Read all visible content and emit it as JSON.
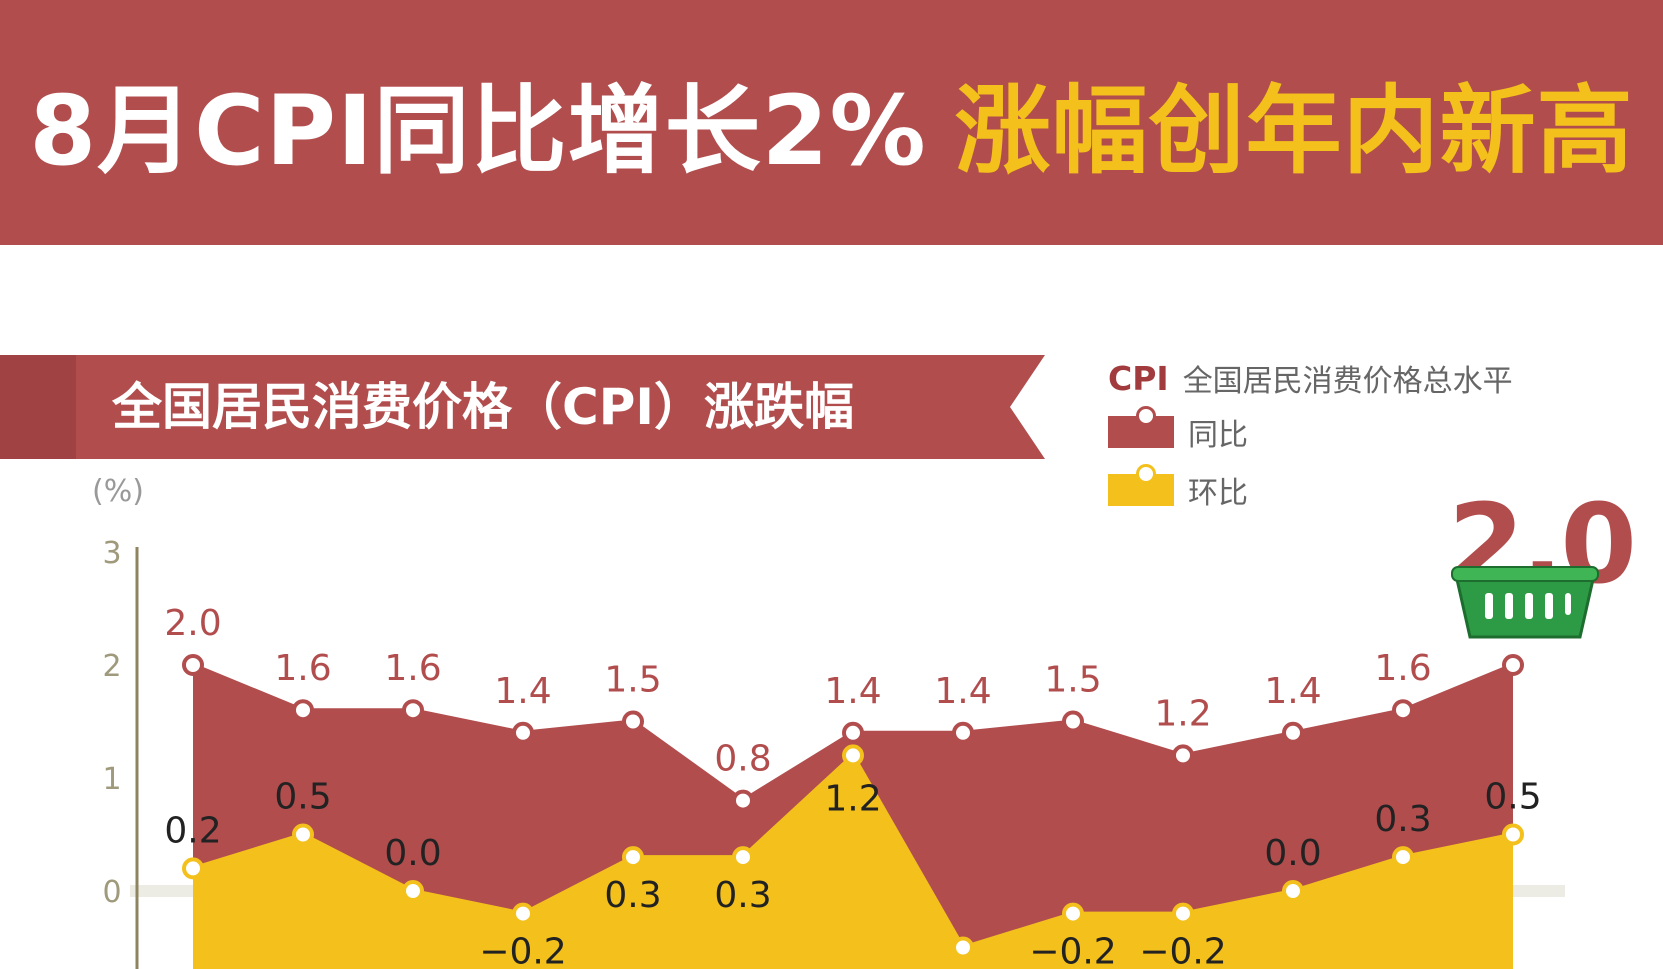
{
  "header": {
    "title_main": "8月CPI同比增长2%",
    "title_highlight": "涨幅创年内新高"
  },
  "banner": {
    "title": "全国居民消费价格（CPI）涨跌幅"
  },
  "legend": {
    "cpi_label": "CPI",
    "cpi_desc": "全国居民消费价格总水平",
    "items": [
      {
        "label": "同比",
        "color": "#b24d4e"
      },
      {
        "label": "环比",
        "color": "#f3c01c"
      }
    ]
  },
  "highlight_value": "2.0",
  "icons": {
    "basket": "shopping-basket-icon"
  },
  "colors": {
    "yoy": "#b24d4e",
    "mom": "#f3c01c",
    "axis": "#999999"
  },
  "chart_data": {
    "type": "area",
    "ylabel": "(%)",
    "ylim": [
      -1,
      3
    ],
    "yticks": [
      0,
      1,
      2,
      3
    ],
    "series": [
      {
        "name": "同比",
        "values": [
          2.0,
          1.6,
          1.6,
          1.4,
          1.5,
          0.8,
          1.4,
          1.4,
          1.5,
          1.2,
          1.4,
          1.6,
          2.0
        ],
        "labels": [
          "2.0",
          "1.6",
          "1.6",
          "1.4",
          "1.5",
          "0.8",
          "1.4",
          "1.4",
          "1.5",
          "1.2",
          "1.4",
          "1.6",
          ""
        ]
      },
      {
        "name": "环比",
        "values": [
          0.2,
          0.5,
          0.0,
          -0.2,
          0.3,
          0.3,
          1.2,
          -0.5,
          -0.2,
          -0.2,
          0.0,
          0.3,
          0.5
        ],
        "labels": [
          "0.2",
          "0.5",
          "0.0",
          "−0.2",
          "0.3",
          "0.3",
          "1.2",
          "",
          "−0.2",
          "−0.2",
          "0.0",
          "0.3",
          "0.5"
        ]
      }
    ]
  }
}
